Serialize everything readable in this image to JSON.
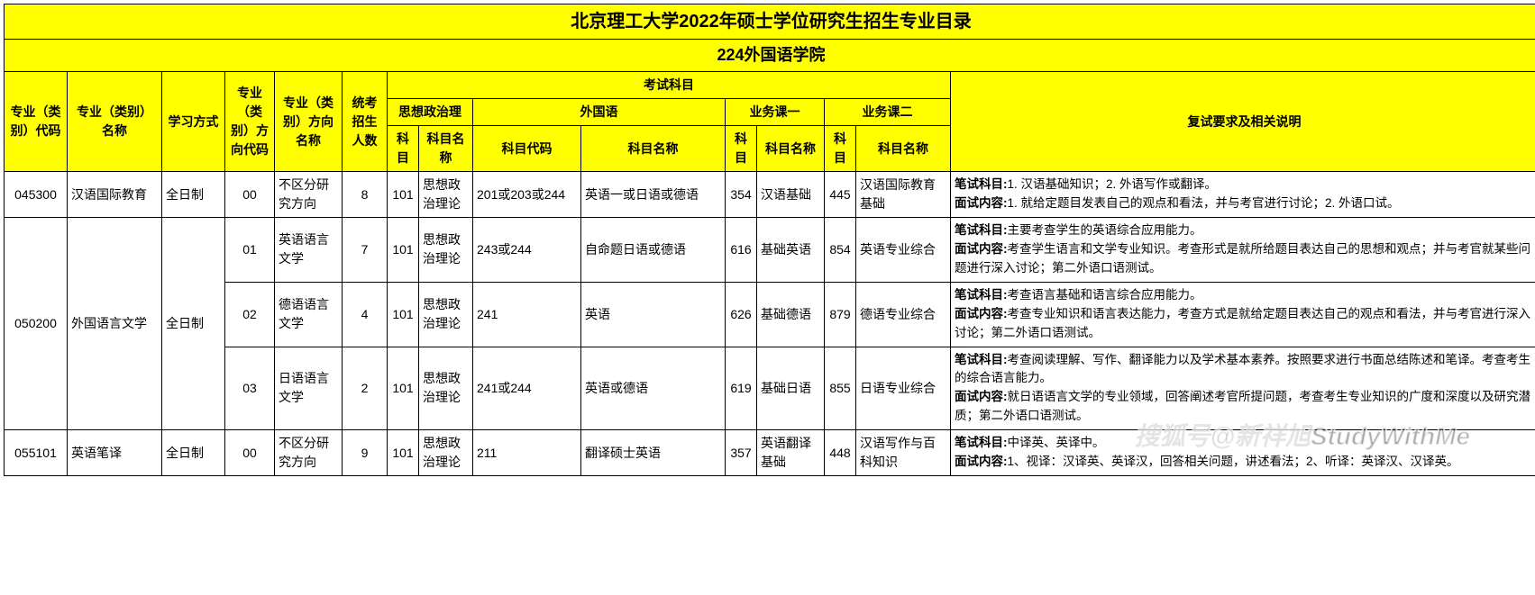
{
  "colors": {
    "header_bg": "#ffff00",
    "border": "#000000",
    "text": "#000000",
    "row_bg": "#ffffff"
  },
  "title": "北京理工大学2022年硕士学位研究生招生专业目录",
  "subtitle": "224外国语学院",
  "header": {
    "major_code": "专业（类别）代码",
    "major_name": "专业（类别）名称",
    "study_mode": "学习方式",
    "dir_code": "专业（类别）方向代码",
    "dir_name": "专业（类别）方向名称",
    "enroll": "统考招生人数",
    "exam_subjects": "考试科目",
    "politics": "思想政治理",
    "foreign": "外国语",
    "biz1": "业务课一",
    "biz2": "业务课二",
    "subj_code": "科目",
    "subj_name": "科目名称",
    "subj_code_full": "科目代码",
    "retest": "复试要求及相关说明"
  },
  "labels": {
    "written": "笔试科目",
    "interview": "面试内容"
  },
  "rows": [
    {
      "major_code": "045300",
      "major_name": "汉语国际教育",
      "study_mode": "全日制",
      "dir_code": "00",
      "dir_name": "不区分研究方向",
      "enroll": "8",
      "pol_code": "101",
      "pol_name": "思想政治理论",
      "for_code": "201或203或244",
      "for_name": "英语一或日语或德语",
      "b1_code": "354",
      "b1_name": "汉语基础",
      "b2_code": "445",
      "b2_name": "汉语国际教育基础",
      "written": "1. 汉语基础知识；2. 外语写作或翻译。",
      "interview": "1. 就给定题目发表自己的观点和看法，并与考官进行讨论；2. 外语口试。"
    },
    {
      "major_code": "050200",
      "major_name": "外国语言文学",
      "study_mode": "全日制",
      "sub": [
        {
          "dir_code": "01",
          "dir_name": "英语语言文学",
          "enroll": "7",
          "pol_code": "101",
          "pol_name": "思想政治理论",
          "for_code": "243或244",
          "for_name": "自命题日语或德语",
          "b1_code": "616",
          "b1_name": "基础英语",
          "b2_code": "854",
          "b2_name": "英语专业综合",
          "written": "主要考查学生的英语综合应用能力。",
          "interview": "考查学生语言和文学专业知识。考查形式是就所给题目表达自己的思想和观点；并与考官就某些问题进行深入讨论；第二外语口语测试。"
        },
        {
          "dir_code": "02",
          "dir_name": "德语语言文学",
          "enroll": "4",
          "pol_code": "101",
          "pol_name": "思想政治理论",
          "for_code": "241",
          "for_name": "英语",
          "b1_code": "626",
          "b1_name": "基础德语",
          "b2_code": "879",
          "b2_name": "德语专业综合",
          "written": "考查语言基础和语言综合应用能力。",
          "interview": "考查专业知识和语言表达能力，考查方式是就给定题目表达自己的观点和看法，并与考官进行深入讨论；第二外语口语测试。"
        },
        {
          "dir_code": "03",
          "dir_name": "日语语言文学",
          "enroll": "2",
          "pol_code": "101",
          "pol_name": "思想政治理论",
          "for_code": "241或244",
          "for_name": "英语或德语",
          "b1_code": "619",
          "b1_name": "基础日语",
          "b2_code": "855",
          "b2_name": "日语专业综合",
          "written": "考查阅读理解、写作、翻译能力以及学术基本素养。按照要求进行书面总结陈述和笔译。考查考生的综合语言能力。",
          "interview": "就日语语言文学的专业领域，回答阐述考官所提问题，考查考生专业知识的广度和深度以及研究潜质；第二外语口语测试。"
        }
      ]
    },
    {
      "major_code": "055101",
      "major_name": "英语笔译",
      "study_mode": "全日制",
      "dir_code": "00",
      "dir_name": "不区分研究方向",
      "enroll": "9",
      "pol_code": "101",
      "pol_name": "思想政治理论",
      "for_code": "211",
      "for_name": "翻译硕士英语",
      "b1_code": "357",
      "b1_name": "英语翻译基础",
      "b2_code": "448",
      "b2_name": "汉语写作与百科知识",
      "written": "中译英、英译中。",
      "interview": "1、视译：汉译英、英译汉，回答相关问题，讲述看法；2、听译：英译汉、汉译英。"
    }
  ],
  "watermark": "搜狐号@新祥旭StudyWithMe"
}
